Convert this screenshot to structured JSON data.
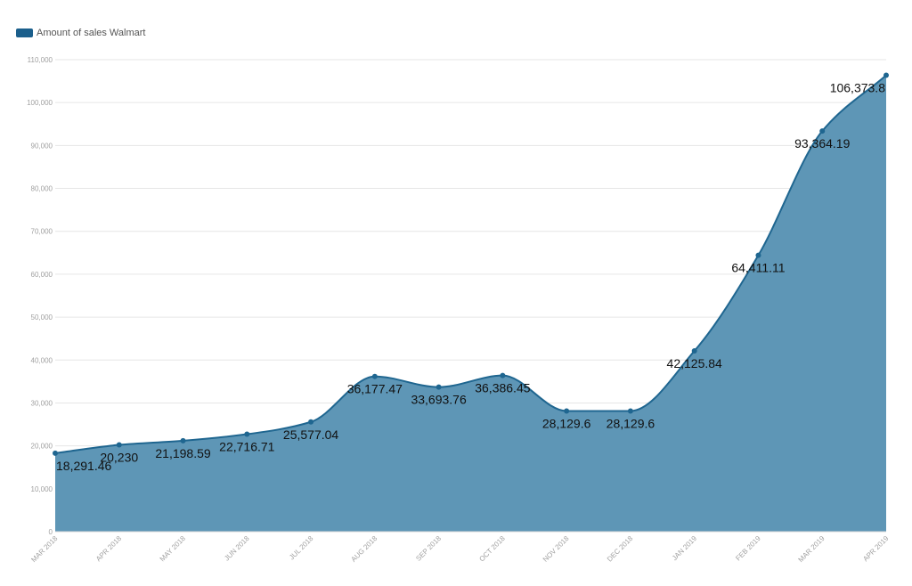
{
  "legend": {
    "label": "Amount of sales Walmart",
    "color": "#1b5f8c"
  },
  "colors": {
    "line": "#1f6690",
    "area": "#5e96b6",
    "grid": "#e6e6e6",
    "tick": "#a0a0a0",
    "label": "#111111"
  },
  "chart_data": {
    "type": "area",
    "categories": [
      "MAR 2018",
      "APR 2018",
      "MAY 2018",
      "JUN 2018",
      "JUL 2018",
      "AUG 2018",
      "SEP 2018",
      "OCT 2018",
      "NOV 2018",
      "DEC 2018",
      "JAN 2019",
      "FEB 2019",
      "MAR 2019",
      "APR 2019"
    ],
    "series": [
      {
        "name": "Amount of sales Walmart",
        "values": [
          18291.46,
          20230,
          21198.59,
          22716.71,
          25577.04,
          36177.47,
          33693.76,
          36386.45,
          28129.6,
          28129.6,
          42125.84,
          64411.11,
          93364.19,
          106373.8
        ],
        "labels": [
          "18,291.46",
          "20,230",
          "21,198.59",
          "22,716.71",
          "25,577.04",
          "36,177.47",
          "33,693.76",
          "36,386.45",
          "28,129.6",
          "28,129.6",
          "42,125.84",
          "64,411.11",
          "93,364.19",
          "106,373.8"
        ]
      }
    ],
    "ylim": [
      0,
      110000
    ],
    "yticks": [
      0,
      10000,
      20000,
      30000,
      40000,
      50000,
      60000,
      70000,
      80000,
      90000,
      100000,
      110000
    ],
    "ytick_labels": [
      "0",
      "10,000",
      "20,000",
      "30,000",
      "40,000",
      "50,000",
      "60,000",
      "70,000",
      "80,000",
      "90,000",
      "100,000",
      "110,000"
    ],
    "grid": true,
    "legend_position": "top-left",
    "xlabel": "",
    "ylabel": ""
  }
}
